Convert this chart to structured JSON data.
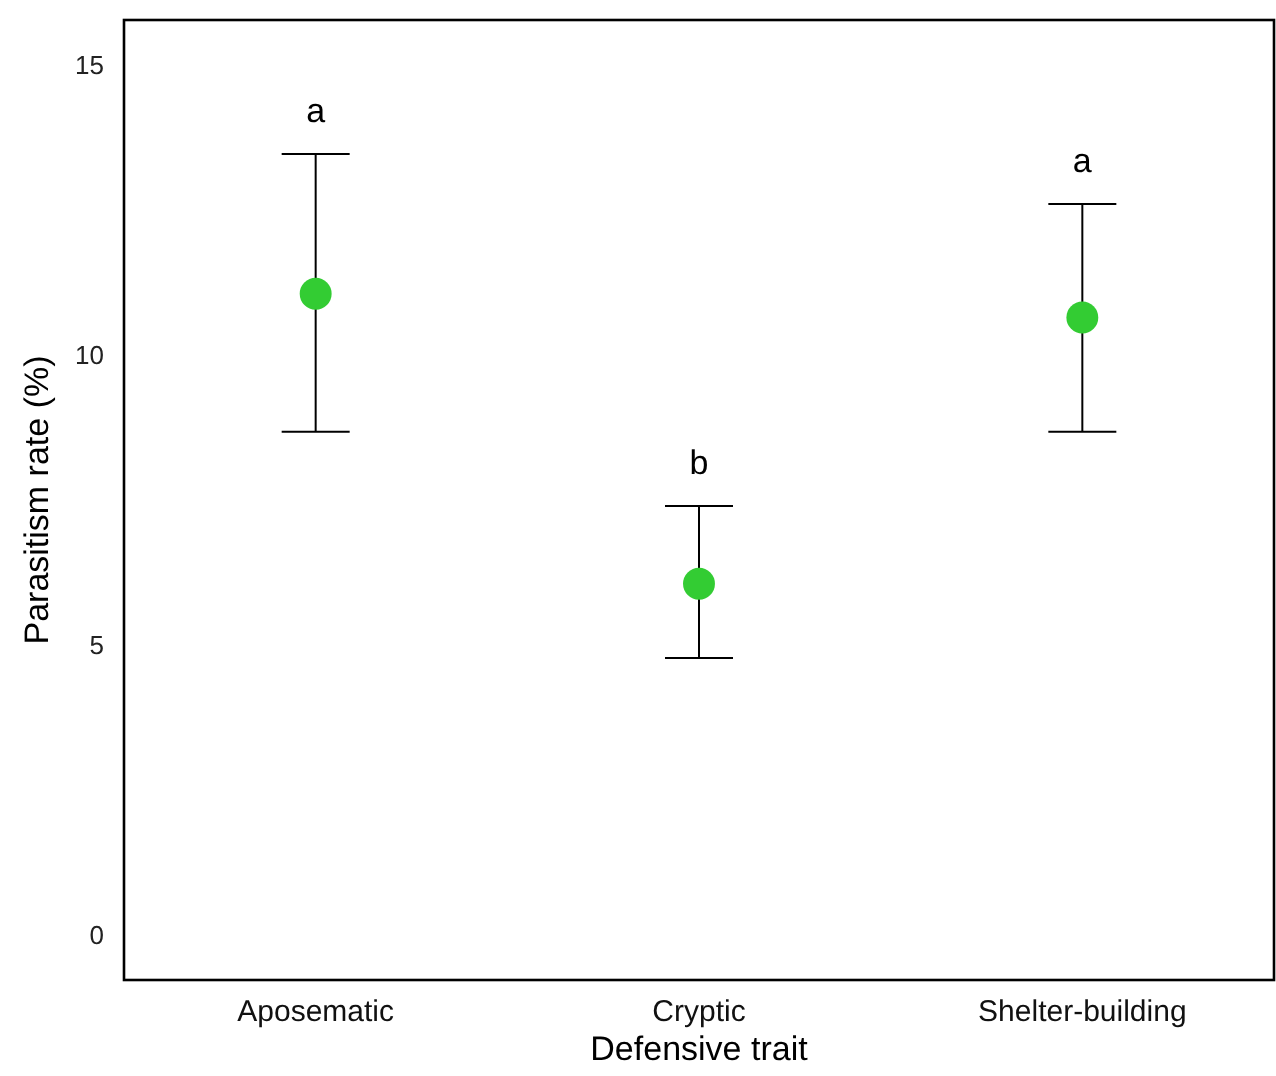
{
  "chart_data": {
    "type": "scatter",
    "xlabel": "Defensive trait",
    "ylabel": "Parasitism rate (%)",
    "categories": [
      "Aposematic",
      "Cryptic",
      "Shelter-building"
    ],
    "series": [
      {
        "color": "#33cc33",
        "values": [
          11.07,
          6.07,
          10.66
        ],
        "errors": [
          [
            8.69,
            13.48
          ],
          [
            4.79,
            7.41
          ],
          [
            8.69,
            12.62
          ]
        ]
      }
    ],
    "ylim": [
      -0.76,
      15.79
    ],
    "yticks": [
      0,
      5,
      10,
      15
    ],
    "marker": "circle",
    "grid": false,
    "annotations": [
      "a",
      "b",
      "a"
    ]
  }
}
